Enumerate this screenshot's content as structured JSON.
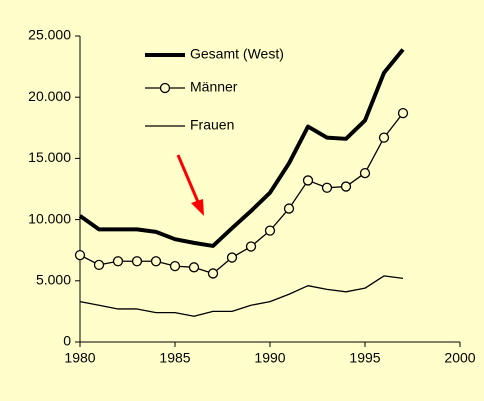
{
  "chart_data": {
    "type": "line",
    "x": [
      1980,
      1981,
      1982,
      1983,
      1984,
      1985,
      1986,
      1987,
      1988,
      1989,
      1990,
      1991,
      1992,
      1993,
      1994,
      1995,
      1996,
      1997
    ],
    "series": [
      {
        "name": "Gesamt (West)",
        "color": "#000000",
        "line_width": 4,
        "values": [
          10300,
          9200,
          9200,
          9200,
          9000,
          8400,
          8100,
          7850,
          9300,
          10700,
          12200,
          14600,
          17600,
          16700,
          16600,
          18100,
          22000,
          23900
        ]
      },
      {
        "name": "Männer",
        "color": "#000000",
        "line_width": 1.3,
        "marker": "circle",
        "values": [
          7100,
          6300,
          6600,
          6600,
          6600,
          6200,
          6100,
          5600,
          6900,
          7800,
          9100,
          10900,
          13200,
          12600,
          12700,
          13800,
          16700,
          18700
        ]
      },
      {
        "name": "Frauen",
        "color": "#000000",
        "line_width": 1.3,
        "values": [
          3300,
          3000,
          2700,
          2700,
          2400,
          2400,
          2100,
          2500,
          2500,
          3000,
          3300,
          3900,
          4600,
          4300,
          4100,
          4400,
          5400,
          5200
        ]
      }
    ],
    "xlim": [
      1980,
      2000
    ],
    "xticks": [
      1980,
      1985,
      1990,
      1995,
      2000
    ],
    "ylim": [
      0,
      25000
    ],
    "yticks": [
      0,
      {
        "value": 5000,
        "label": "5.000"
      },
      {
        "value": 10000,
        "label": "10.000"
      },
      {
        "value": 15000,
        "label": "15.000"
      },
      {
        "value": 20000,
        "label": "20.000"
      },
      {
        "value": 25000,
        "label": "25.000"
      }
    ],
    "background": "#ffffcc"
  }
}
